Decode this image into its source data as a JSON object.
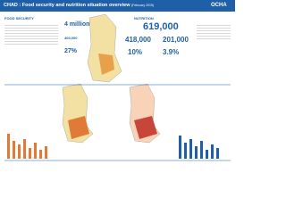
{
  "header": {
    "title": "CHAD : Food security and nutrition situation overview",
    "date": "(February 2015)",
    "logo": "OCHA"
  },
  "food_security": {
    "heading": "FOOD SECURITY",
    "people": "4 million",
    "figures": [
      "400,000",
      "27%"
    ]
  },
  "nutrition": {
    "heading": "NUTRITION",
    "total": "619,000",
    "figures": [
      "418,000",
      "201,000",
      "10%",
      "3.9%"
    ]
  }
}
